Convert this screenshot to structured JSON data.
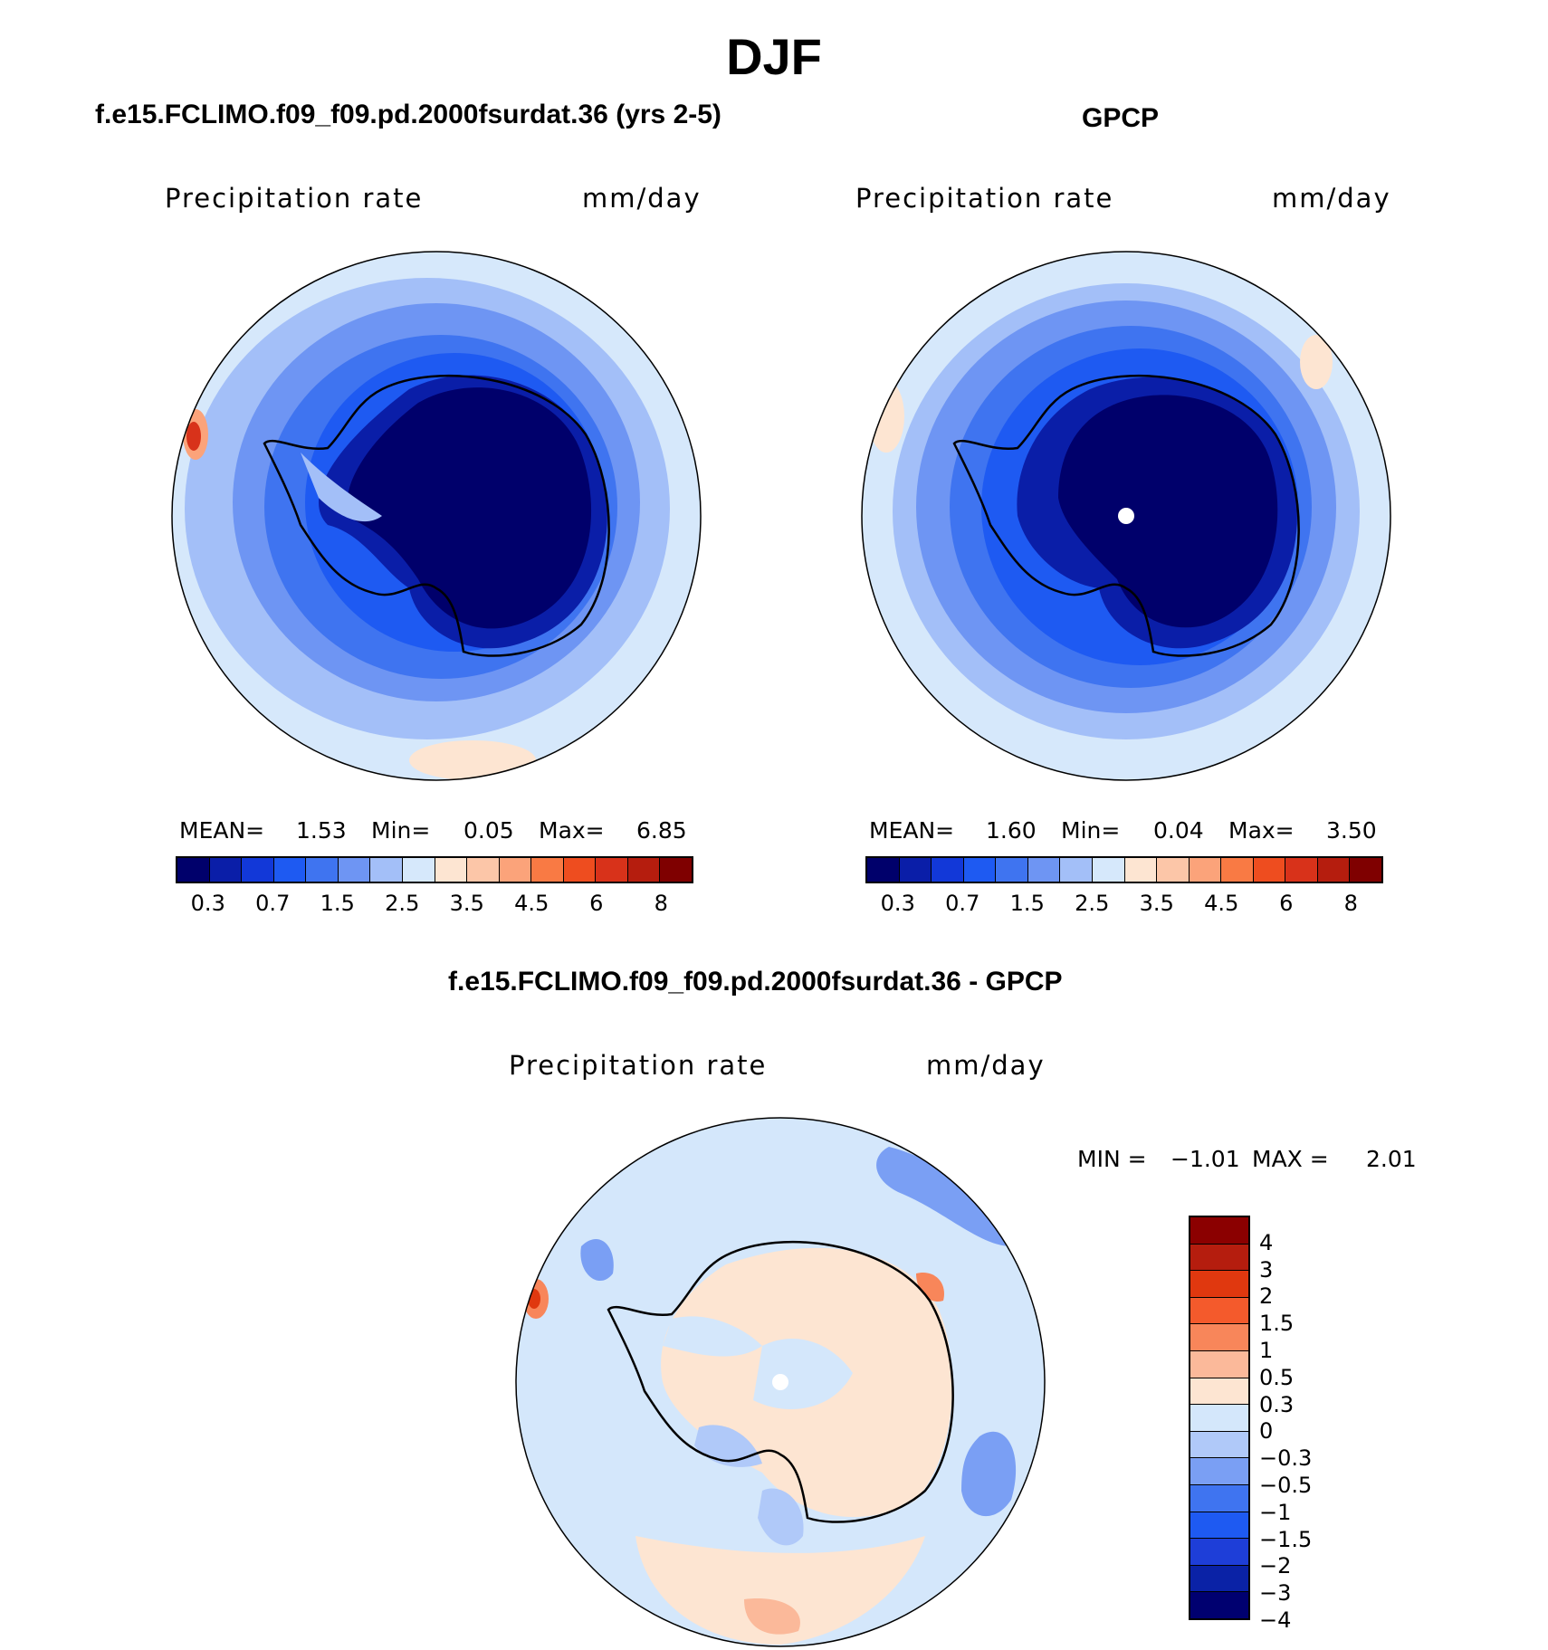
{
  "season": "DJF",
  "colors": {
    "abs_scale": [
      "#00006b",
      "#0a1ea8",
      "#1238d8",
      "#1e5af2",
      "#3f74f0",
      "#6e95f3",
      "#a3bff8",
      "#d6e8fb",
      "#fde5d2",
      "#fcc6a8",
      "#fba37a",
      "#f97a44",
      "#ee4d1f",
      "#d8321a",
      "#b51d0e",
      "#7f0000"
    ],
    "diff_scale": [
      "#000070",
      "#0a22a6",
      "#1e3ed8",
      "#1e5af2",
      "#3f74f0",
      "#7a9ff4",
      "#b0c9f9",
      "#d4e7fb",
      "#fde5d2",
      "#fbb99a",
      "#f8865a",
      "#f45a2c",
      "#e0380f",
      "#b51d0e",
      "#8b0000"
    ],
    "coast": "#000000"
  },
  "panel1": {
    "subtitle": "f.e15.FCLIMO.f09_f09.pd.2000fsurdat.36 (yrs 2-5)",
    "variable": "Precipitation rate",
    "units": "mm/day",
    "mean_label": "MEAN=",
    "mean": "1.53",
    "min_label": "Min=",
    "min": "0.05",
    "max_label": "Max=",
    "max": "6.85",
    "ticks": [
      "0.3",
      "0.7",
      "1.5",
      "2.5",
      "3.5",
      "4.5",
      "6",
      "8"
    ]
  },
  "panel2": {
    "subtitle": "GPCP",
    "variable": "Precipitation rate",
    "units": "mm/day",
    "mean_label": "MEAN=",
    "mean": "1.60",
    "min_label": "Min=",
    "min": "0.04",
    "max_label": "Max=",
    "max": "3.50",
    "ticks": [
      "0.3",
      "0.7",
      "1.5",
      "2.5",
      "3.5",
      "4.5",
      "6",
      "8"
    ]
  },
  "panel3": {
    "subtitle": "f.e15.FCLIMO.f09_f09.pd.2000fsurdat.36 - GPCP",
    "variable": "Precipitation rate",
    "units": "mm/day",
    "min_label": "MIN =",
    "min": "−1.01",
    "max_label": "MAX =",
    "max": "2.01",
    "ticks": [
      "4",
      "3",
      "2",
      "1.5",
      "1",
      "0.5",
      "0.3",
      "0",
      "−0.3",
      "−0.5",
      "−1",
      "−1.5",
      "−2",
      "−3",
      "−4"
    ]
  }
}
